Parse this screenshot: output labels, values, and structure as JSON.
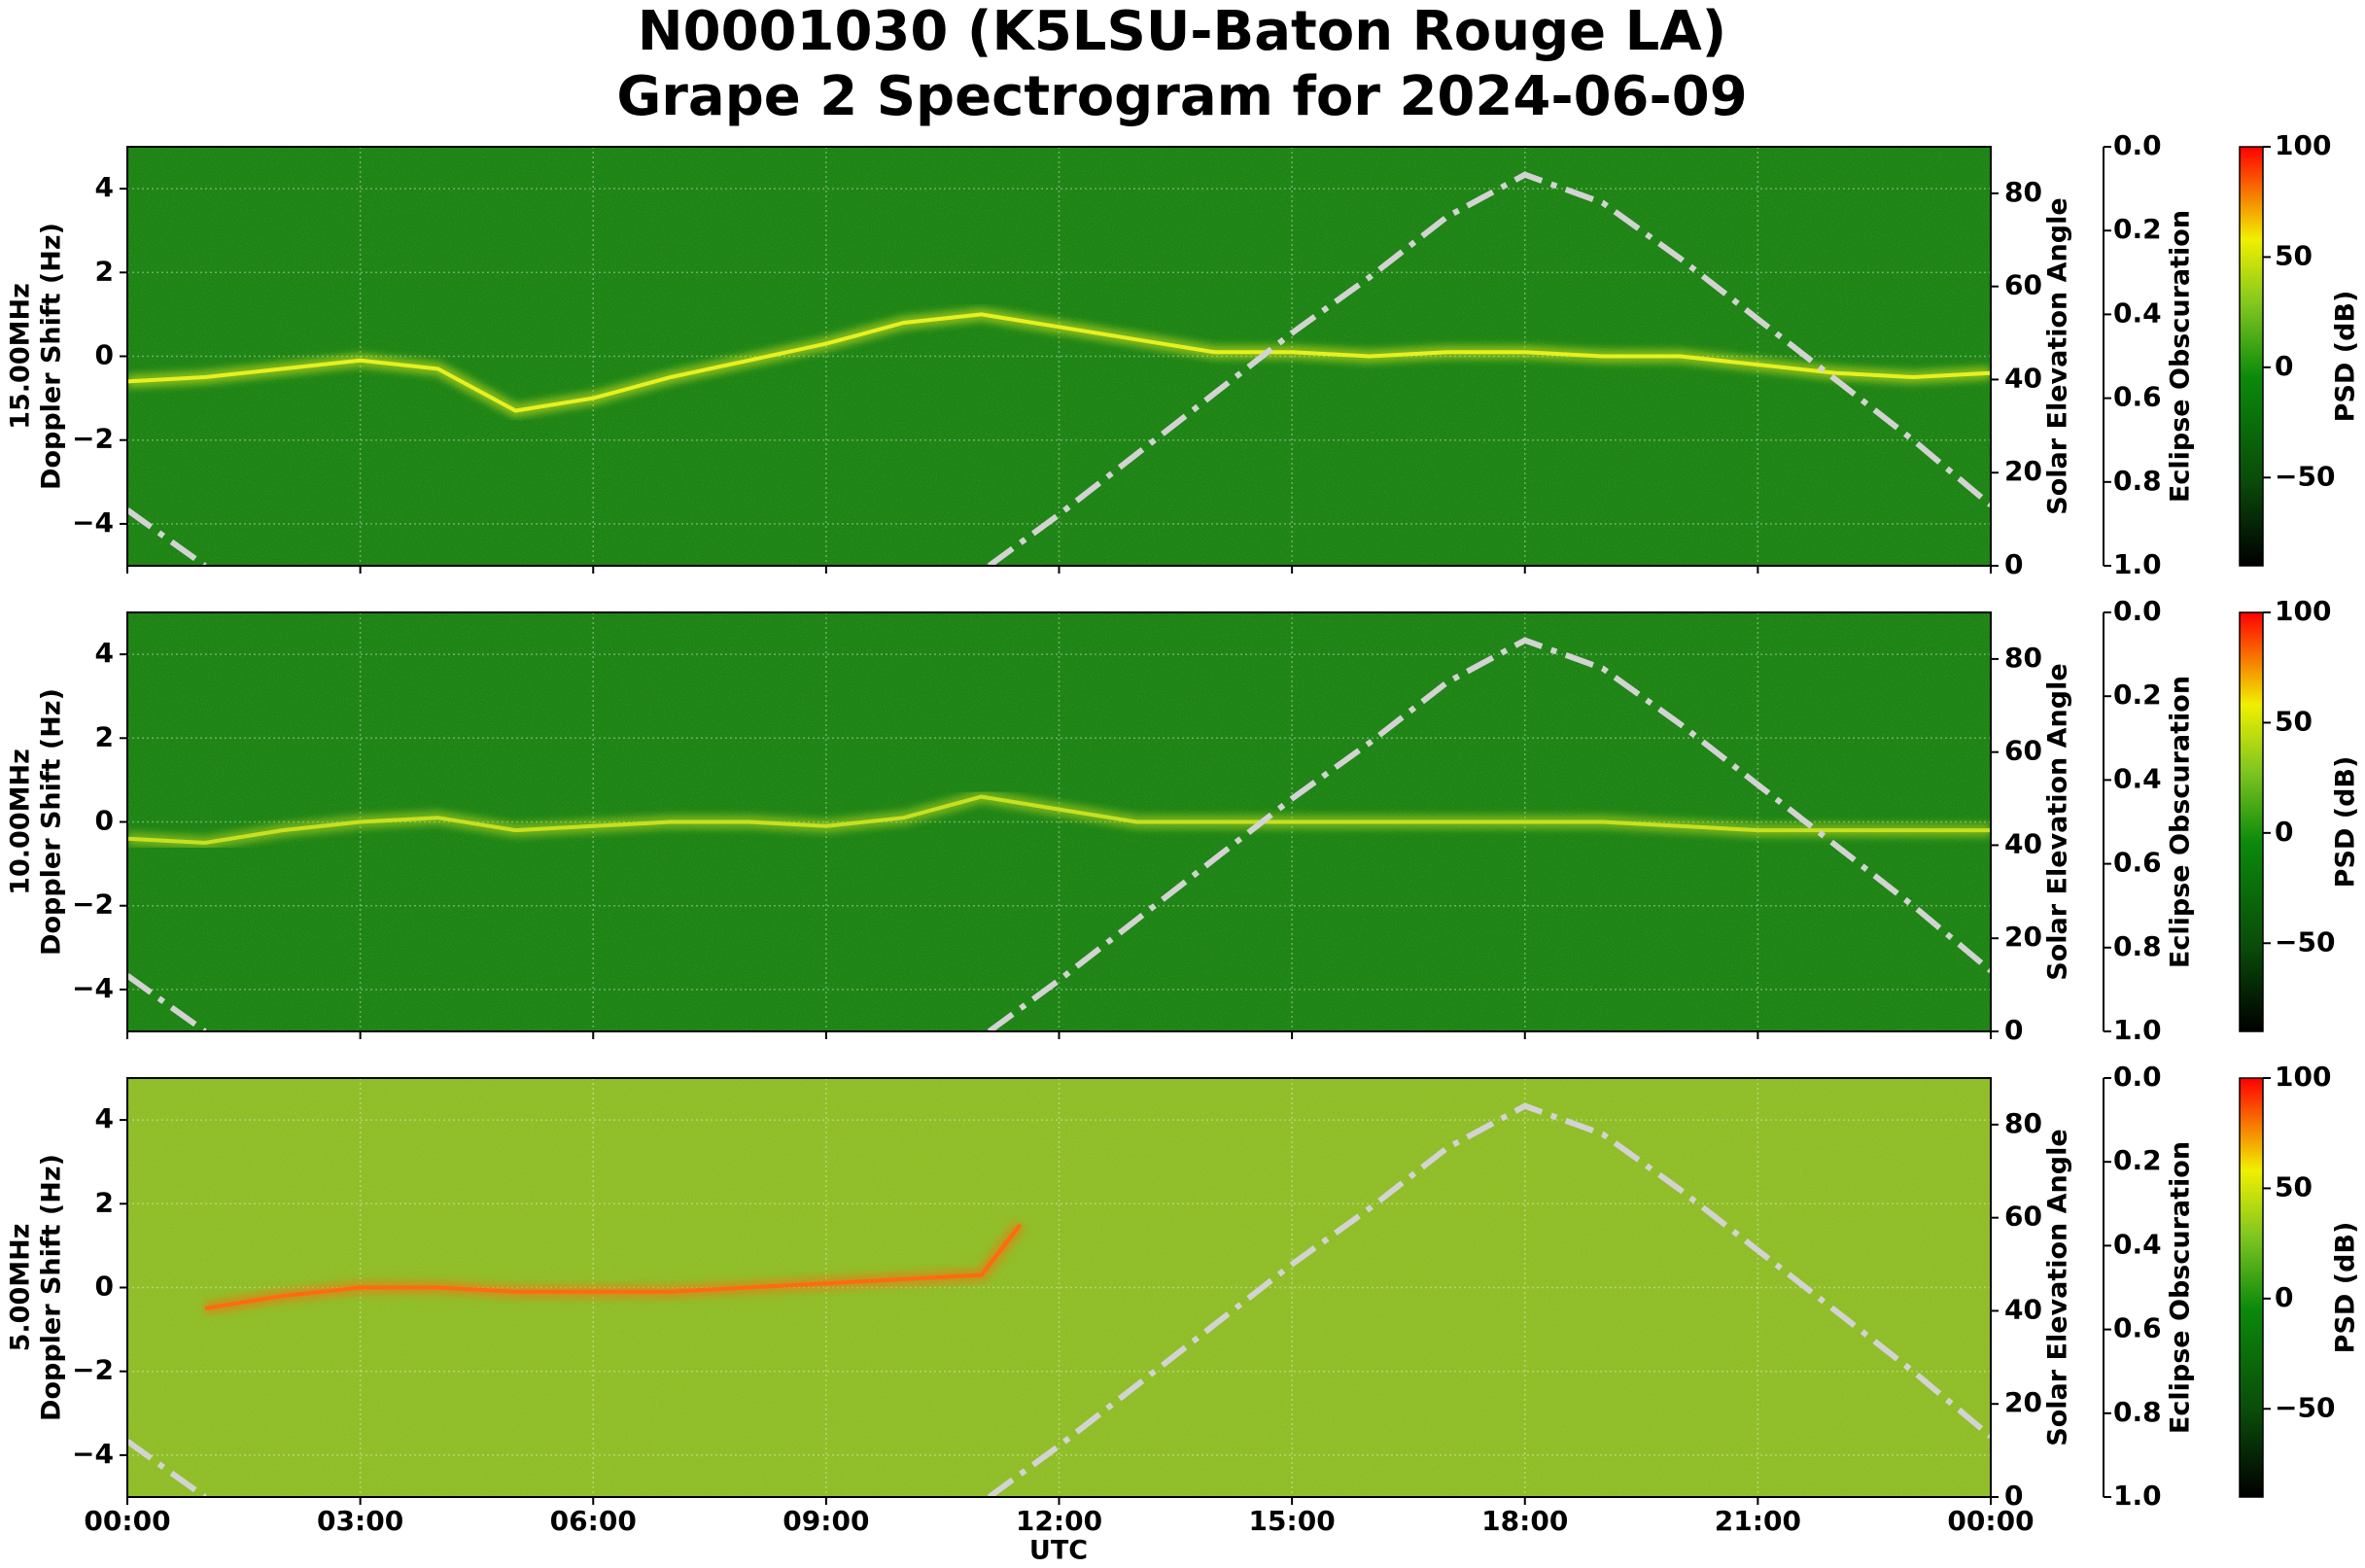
{
  "chart_data": {
    "type": "spectrogram",
    "title": "N0001030 (K5LSU-Baton Rouge LA)",
    "subtitle": "Grape 2 Spectrogram for 2024-06-09",
    "xlabel": "UTC",
    "xlim": [
      0,
      24
    ],
    "xticks": [
      {
        "value": 0,
        "label": "00:00"
      },
      {
        "value": 3,
        "label": "03:00"
      },
      {
        "value": 6,
        "label": "06:00"
      },
      {
        "value": 9,
        "label": "09:00"
      },
      {
        "value": 12,
        "label": "12:00"
      },
      {
        "value": 15,
        "label": "15:00"
      },
      {
        "value": 18,
        "label": "18:00"
      },
      {
        "value": 21,
        "label": "21:00"
      },
      {
        "value": 24,
        "label": "00:00"
      }
    ],
    "grid": true,
    "panels": [
      {
        "band": "15.00MHz",
        "ylabel": "Doppler Shift (Hz)",
        "background": "#0b7a0b",
        "ylim": [
          -5,
          5
        ],
        "yticks": [
          {
            "value": -4,
            "label": "−4"
          },
          {
            "value": -2,
            "label": "−2"
          },
          0,
          2,
          4
        ],
        "y2label": "Solar Elevation Angle",
        "y2lim": [
          0,
          90
        ],
        "y2ticks": [
          0,
          20,
          40,
          60,
          80
        ],
        "y3label": "Eclipse Obscuration",
        "y3lim": [
          0,
          1
        ],
        "y3_inverted": true,
        "y3ticks": [
          {
            "value": 0,
            "label": "0.0"
          },
          0.2,
          0.4,
          0.6,
          0.8,
          {
            "value": 1,
            "label": "1.0"
          }
        ],
        "colorbar_label": "PSD (dB)",
        "clim": [
          -90,
          100
        ],
        "cticks": [
          {
            "value": -50,
            "label": "−50"
          },
          0,
          50,
          100
        ],
        "series": [
          {
            "color": "#e8f020",
            "x": [
              0,
              1,
              2,
              3,
              4,
              5,
              6,
              7,
              8,
              9,
              10,
              11,
              12,
              13,
              14,
              15,
              16,
              17,
              18,
              19,
              20,
              21,
              22,
              23,
              24
            ],
            "values": [
              -0.6,
              -0.5,
              -0.3,
              -0.1,
              -0.3,
              -1.3,
              -1.0,
              -0.5,
              -0.1,
              0.3,
              0.8,
              1.0,
              0.7,
              0.4,
              0.1,
              0.1,
              0,
              0.1,
              0.1,
              0,
              0,
              -0.2,
              -0.4,
              -0.5,
              -0.4
            ]
          },
          {
            "color": "#d3d3d3",
            "axis": "y2",
            "x": [
              0,
              0.5,
              1,
              6,
              11.1,
              12,
              13,
              14,
              15,
              16,
              17,
              18,
              19,
              20,
              21,
              22,
              23,
              24
            ],
            "values": [
              12,
              6,
              0,
              null,
              0,
              11,
              24,
              37,
              50,
              62,
              75,
              84,
              78,
              66,
              53,
              40,
              27,
              13
            ]
          }
        ]
      },
      {
        "band": "10.00MHz",
        "ylabel": "Doppler Shift (Hz)",
        "background": "#0b7a0b",
        "ylim": [
          -5,
          5
        ],
        "yticks": [
          {
            "value": -4,
            "label": "−4"
          },
          {
            "value": -2,
            "label": "−2"
          },
          0,
          2,
          4
        ],
        "y2label": "Solar Elevation Angle",
        "y2lim": [
          0,
          90
        ],
        "y2ticks": [
          0,
          20,
          40,
          60,
          80
        ],
        "y3label": "Eclipse Obscuration",
        "y3lim": [
          0,
          1
        ],
        "y3_inverted": true,
        "y3ticks": [
          {
            "value": 0,
            "label": "0.0"
          },
          0.2,
          0.4,
          0.6,
          0.8,
          {
            "value": 1,
            "label": "1.0"
          }
        ],
        "colorbar_label": "PSD (dB)",
        "clim": [
          -90,
          100
        ],
        "cticks": [
          {
            "value": -50,
            "label": "−50"
          },
          0,
          50,
          100
        ],
        "series": [
          {
            "color": "#c8e020",
            "x": [
              0,
              1,
              2,
              3,
              4,
              5,
              6,
              7,
              8,
              9,
              10,
              11,
              12,
              13,
              14,
              15,
              16,
              17,
              18,
              19,
              20,
              21,
              22,
              23,
              24
            ],
            "values": [
              -0.4,
              -0.5,
              -0.2,
              0,
              0.1,
              -0.2,
              -0.1,
              0,
              0,
              -0.1,
              0.1,
              0.6,
              0.3,
              0,
              0,
              0,
              0,
              0,
              0,
              0,
              -0.1,
              -0.2,
              -0.2,
              -0.2,
              -0.2
            ]
          },
          {
            "color": "#d3d3d3",
            "axis": "y2",
            "x": [
              0,
              0.5,
              1,
              6,
              11.1,
              12,
              13,
              14,
              15,
              16,
              17,
              18,
              19,
              20,
              21,
              22,
              23,
              24
            ],
            "values": [
              12,
              6,
              0,
              null,
              0,
              11,
              24,
              37,
              50,
              62,
              75,
              84,
              78,
              66,
              53,
              40,
              27,
              13
            ]
          }
        ]
      },
      {
        "band": "5.00MHz",
        "ylabel": "Doppler Shift (Hz)",
        "background": "#86b820",
        "ylim": [
          -5,
          5
        ],
        "yticks": [
          {
            "value": -4,
            "label": "−4"
          },
          {
            "value": -2,
            "label": "−2"
          },
          0,
          2,
          4
        ],
        "y2label": "Solar Elevation Angle",
        "y2lim": [
          0,
          90
        ],
        "y2ticks": [
          0,
          20,
          40,
          60,
          80
        ],
        "y3label": "Eclipse Obscuration",
        "y3lim": [
          0,
          1
        ],
        "y3_inverted": true,
        "y3ticks": [
          {
            "value": 0,
            "label": "0.0"
          },
          0.2,
          0.4,
          0.6,
          0.8,
          {
            "value": 1,
            "label": "1.0"
          }
        ],
        "colorbar_label": "PSD (dB)",
        "clim": [
          -90,
          100
        ],
        "cticks": [
          {
            "value": -50,
            "label": "−50"
          },
          0,
          50,
          100
        ],
        "series": [
          {
            "color": "#ff6a10",
            "x": [
              1,
              2,
              3,
              4,
              5,
              6,
              7,
              8,
              9,
              10,
              11,
              11.5
            ],
            "values": [
              -0.5,
              -0.2,
              0,
              0,
              -0.1,
              -0.1,
              -0.1,
              0,
              0.1,
              0.2,
              0.3,
              1.5
            ]
          },
          {
            "color": "#d3d3d3",
            "axis": "y2",
            "x": [
              0,
              0.5,
              1,
              6,
              11.1,
              12,
              13,
              14,
              15,
              16,
              17,
              18,
              19,
              20,
              21,
              22,
              23,
              24
            ],
            "values": [
              12,
              6,
              0,
              null,
              0,
              11,
              24,
              37,
              50,
              62,
              75,
              84,
              78,
              66,
              53,
              40,
              27,
              13
            ]
          }
        ]
      }
    ]
  }
}
